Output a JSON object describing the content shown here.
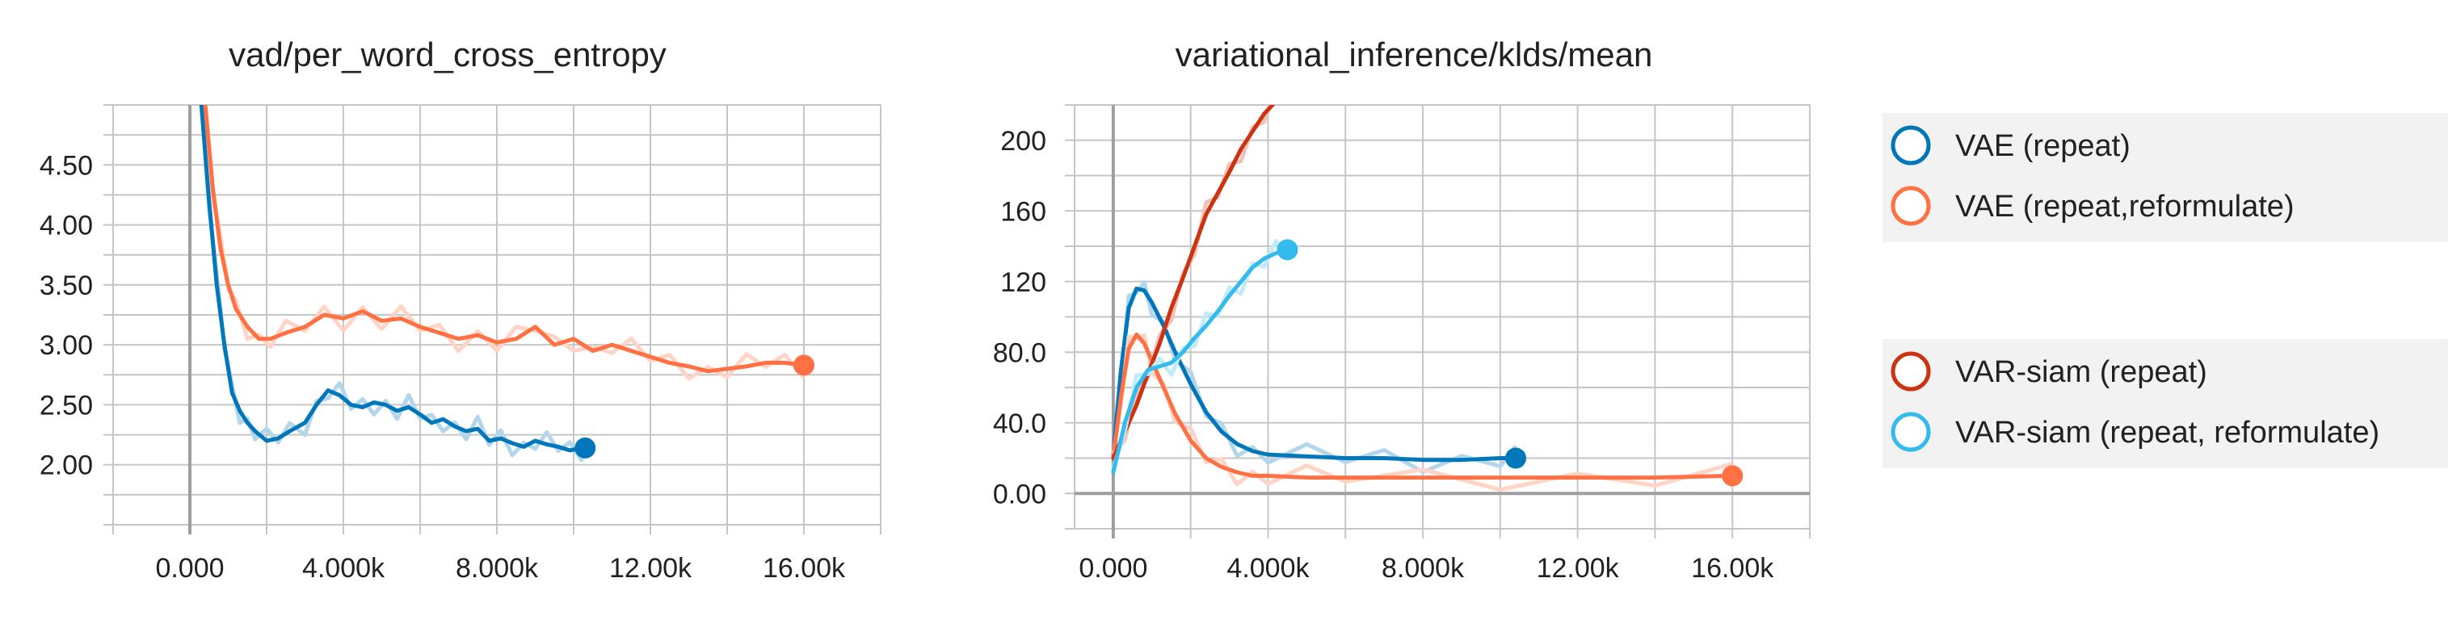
{
  "colors": {
    "vae_repeat": "#0077bb",
    "vae_repeat_reformulate": "#ff7043",
    "var_siam_repeat": "#cc3311",
    "var_siam_repeat_reformulate": "#33bbee",
    "legend_bg": "#f2f2f2"
  },
  "legend": {
    "items": [
      {
        "label": "VAE (repeat)",
        "color": "#0077bb"
      },
      {
        "label": "VAE (repeat,reformulate)",
        "color": "#ff7043"
      },
      {
        "label": "VAR-siam (repeat)",
        "color": "#cc3311"
      },
      {
        "label": "VAR-siam (repeat, reformulate)",
        "color": "#33bbee"
      }
    ]
  },
  "chart_data": [
    {
      "type": "line",
      "title": "vad/per_word_cross_entropy",
      "xlabel": "",
      "ylabel": "",
      "xlim": [
        -2000,
        18000
      ],
      "ylim": [
        1.5,
        5.0
      ],
      "xticks": [
        0,
        4000,
        8000,
        12000,
        16000
      ],
      "xtick_labels": [
        "0.000",
        "4.000k",
        "8.000k",
        "12.00k",
        "16.00k"
      ],
      "yticks": [
        2.0,
        2.5,
        3.0,
        3.5,
        4.0,
        4.5
      ],
      "ytick_labels": [
        "2.00",
        "2.50",
        "3.00",
        "3.50",
        "4.00",
        "4.50"
      ],
      "grid": true,
      "series": [
        {
          "name": "VAE (repeat)",
          "color": "#0077bb",
          "x": [
            300,
            500,
            700,
            900,
            1100,
            1300,
            1500,
            1700,
            2000,
            2300,
            2600,
            3000,
            3300,
            3600,
            3900,
            4200,
            4500,
            4800,
            5100,
            5400,
            5700,
            6000,
            6300,
            6600,
            6900,
            7200,
            7500,
            7800,
            8100,
            8400,
            8700,
            9000,
            9300,
            9600,
            9900,
            10200,
            10300
          ],
          "y": [
            5.0,
            4.2,
            3.5,
            3.0,
            2.6,
            2.45,
            2.35,
            2.28,
            2.2,
            2.22,
            2.28,
            2.35,
            2.5,
            2.62,
            2.58,
            2.5,
            2.48,
            2.52,
            2.5,
            2.45,
            2.48,
            2.42,
            2.35,
            2.38,
            2.32,
            2.28,
            2.3,
            2.2,
            2.22,
            2.18,
            2.15,
            2.2,
            2.17,
            2.15,
            2.12,
            2.14,
            2.14
          ],
          "end_marker": true
        },
        {
          "name": "VAE (repeat,reformulate)",
          "color": "#ff7043",
          "x": [
            400,
            600,
            800,
            1000,
            1200,
            1500,
            1800,
            2100,
            2500,
            3000,
            3500,
            4000,
            4500,
            5000,
            5500,
            6000,
            6500,
            7000,
            7500,
            8000,
            8500,
            9000,
            9500,
            10000,
            10500,
            11000,
            11500,
            12000,
            12500,
            13000,
            13500,
            14000,
            14500,
            15000,
            15500,
            16000
          ],
          "y": [
            5.0,
            4.3,
            3.8,
            3.5,
            3.3,
            3.15,
            3.05,
            3.05,
            3.1,
            3.15,
            3.25,
            3.22,
            3.28,
            3.2,
            3.22,
            3.15,
            3.1,
            3.05,
            3.08,
            3.02,
            3.05,
            3.15,
            3.0,
            3.05,
            2.95,
            3.0,
            2.95,
            2.9,
            2.85,
            2.82,
            2.78,
            2.8,
            2.82,
            2.85,
            2.85,
            2.83
          ],
          "end_marker": true
        }
      ]
    },
    {
      "type": "line",
      "title": "variational_inference/klds/mean",
      "xlabel": "",
      "ylabel": "",
      "xlim": [
        -1000,
        18000
      ],
      "ylim": [
        -20,
        220
      ],
      "xticks": [
        0,
        4000,
        8000,
        12000,
        16000
      ],
      "xtick_labels": [
        "0.000",
        "4.000k",
        "8.000k",
        "12.00k",
        "16.00k"
      ],
      "yticks": [
        0,
        40,
        80,
        120,
        160,
        200
      ],
      "ytick_labels": [
        "0.00",
        "40.0",
        "80.0",
        "120",
        "160",
        "200"
      ],
      "grid": true,
      "series": [
        {
          "name": "VAE (repeat)",
          "color": "#0077bb",
          "x": [
            0,
            200,
            400,
            600,
            800,
            1000,
            1300,
            1600,
            2000,
            2400,
            2800,
            3200,
            3600,
            4000,
            5000,
            6000,
            7000,
            8000,
            9000,
            10000,
            10400
          ],
          "y": [
            22,
            70,
            105,
            116,
            115,
            108,
            95,
            80,
            62,
            46,
            35,
            28,
            24,
            22,
            21,
            20,
            20,
            19,
            19,
            20,
            20
          ],
          "end_marker": true
        },
        {
          "name": "VAE (repeat,reformulate)",
          "color": "#ff7043",
          "x": [
            0,
            200,
            400,
            600,
            800,
            1000,
            1300,
            1600,
            2000,
            2400,
            2800,
            3200,
            3600,
            4000,
            5000,
            6000,
            8000,
            10000,
            12000,
            14000,
            16000
          ],
          "y": [
            20,
            55,
            82,
            90,
            85,
            75,
            60,
            45,
            30,
            20,
            15,
            12,
            10,
            10,
            9,
            9,
            9,
            9,
            9,
            9,
            10
          ],
          "end_marker": true
        },
        {
          "name": "VAR-siam (repeat)",
          "color": "#cc3311",
          "x": [
            0,
            300,
            600,
            900,
            1200,
            1500,
            1800,
            2100,
            2400,
            2700,
            3000,
            3300,
            3600,
            3900,
            4200,
            4500
          ],
          "y": [
            20,
            35,
            50,
            68,
            85,
            105,
            122,
            140,
            158,
            170,
            182,
            195,
            205,
            215,
            222,
            225
          ],
          "end_marker": false
        },
        {
          "name": "VAR-siam (repeat, reformulate)",
          "color": "#33bbee",
          "x": [
            0,
            300,
            600,
            900,
            1200,
            1500,
            1800,
            2100,
            2400,
            2700,
            3000,
            3300,
            3600,
            3900,
            4200,
            4500
          ],
          "y": [
            12,
            40,
            60,
            70,
            72,
            74,
            80,
            88,
            95,
            103,
            112,
            120,
            128,
            133,
            136,
            138
          ],
          "end_marker": true
        }
      ]
    }
  ]
}
